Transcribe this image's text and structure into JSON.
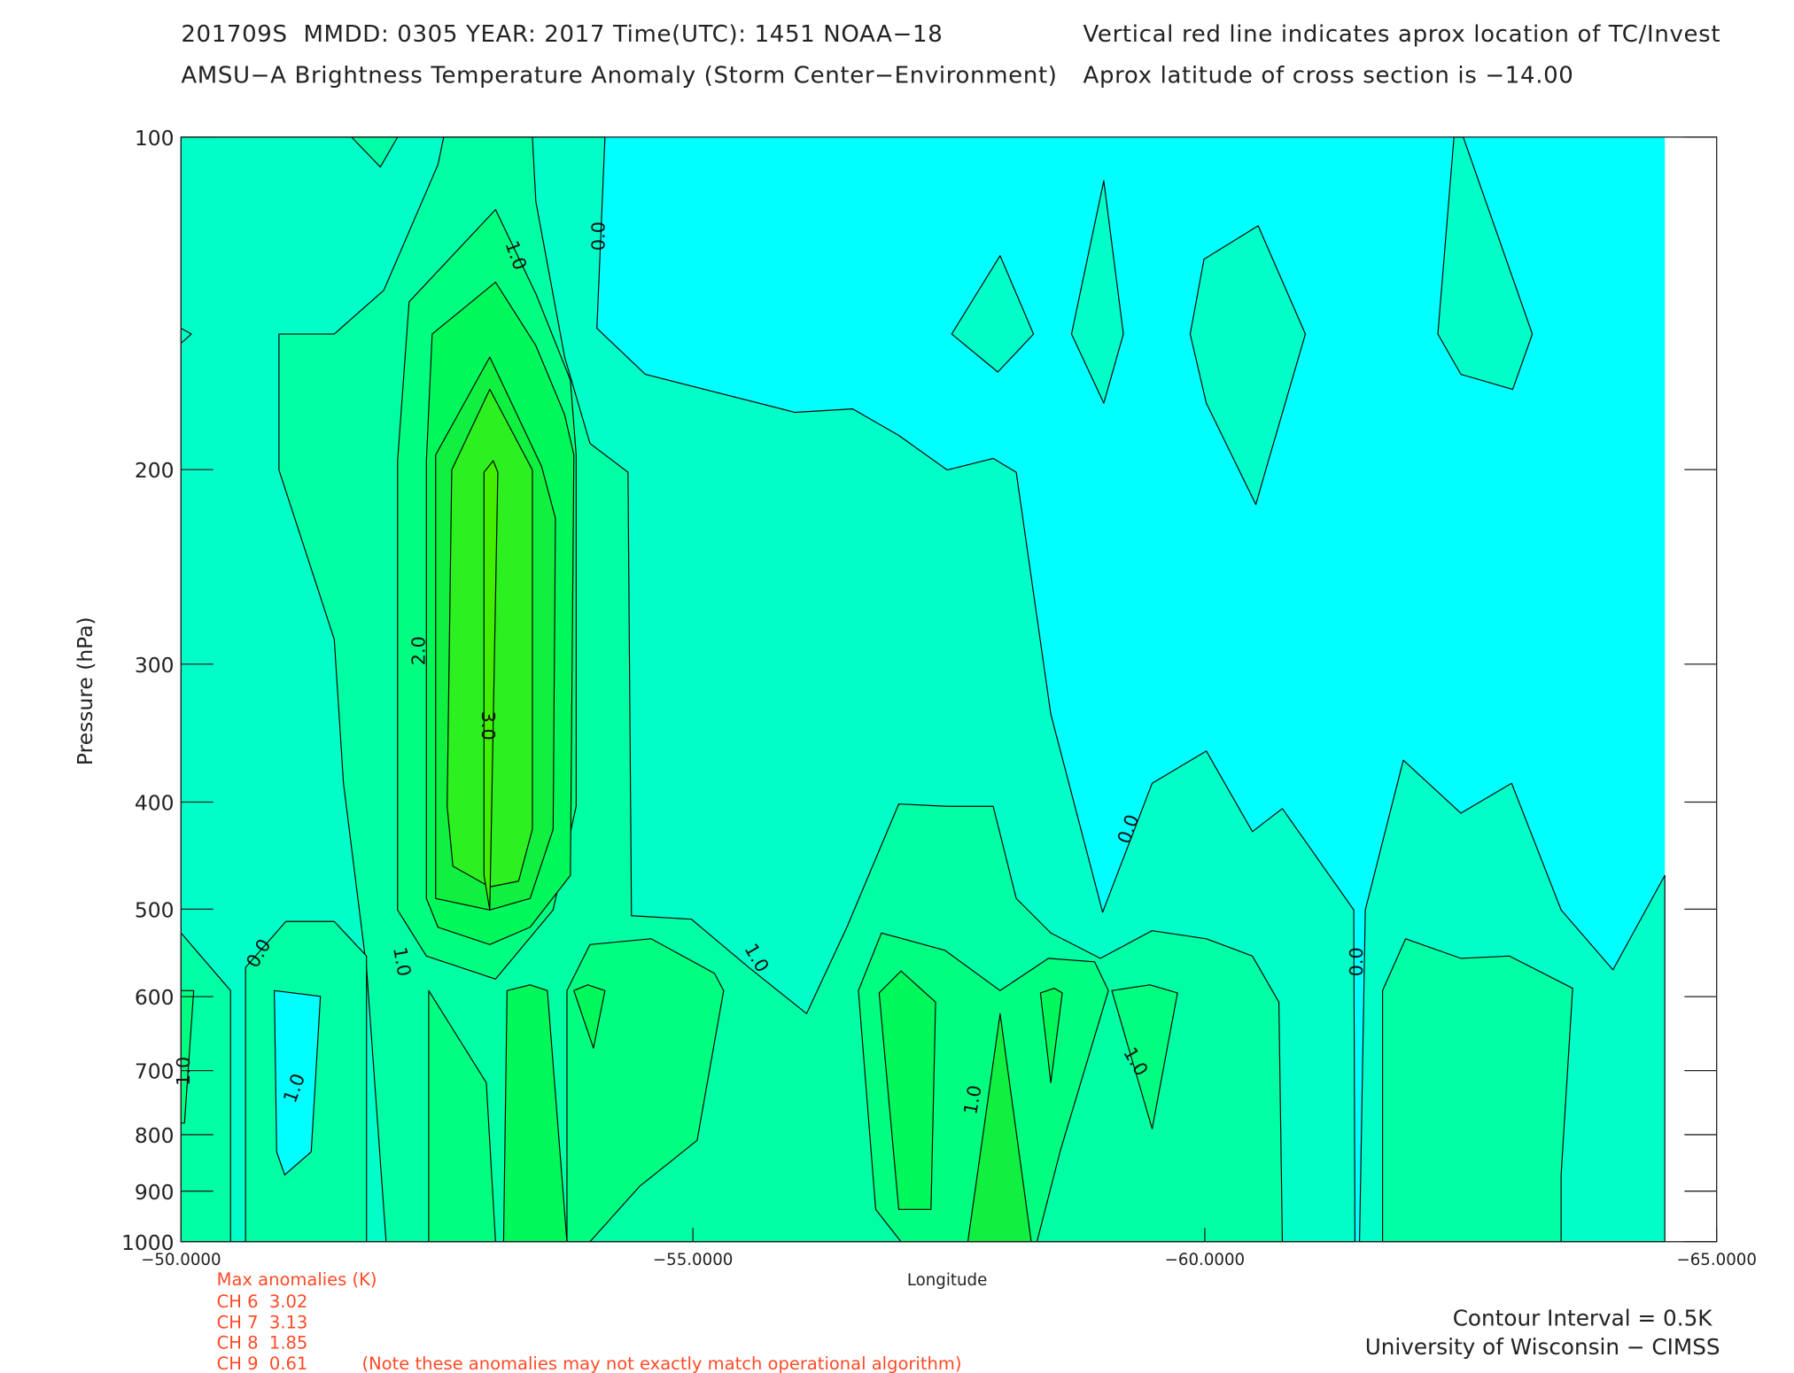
{
  "header": {
    "left": [
      "201709S  MMDD: 0305 YEAR: 2017 Time(UTC): 1451 NOAA−18",
      "AMSU−A Brightness Temperature Anomaly (Storm Center−Environment)"
    ],
    "right": [
      "Vertical red line indicates aprox location of TC/Invest",
      "Aprox latitude of cross section is −14.00"
    ]
  },
  "chart_data": {
    "type": "contour",
    "xlabel": "Longitude",
    "ylabel": "Pressure (hPa)",
    "xlim": [
      -50,
      -65
    ],
    "xticks": [
      {
        "value": -50,
        "label": "−50.0000"
      },
      {
        "value": -55,
        "label": "−55.0000"
      },
      {
        "value": -60,
        "label": "−60.0000"
      },
      {
        "value": -65,
        "label": "−65.0000"
      }
    ],
    "ylim": [
      100,
      1000
    ],
    "yticks": [
      100,
      200,
      300,
      400,
      500,
      600,
      700,
      800,
      900,
      1000
    ],
    "ylog": true,
    "y_inverted": true,
    "levels": [
      0,
      0.5,
      1.0,
      1.5,
      2.0,
      2.5,
      3.0
    ],
    "colors": [
      "#00ffff",
      "#00ffc8",
      "#00ffa4",
      "#00ff80",
      "#00f85a",
      "#10f040",
      "#2cf020",
      "#40f000"
    ],
    "line_color": "#000000",
    "contour_labels": [
      {
        "value": 0,
        "label": "0.0"
      },
      {
        "value": 1,
        "label": "1.0"
      },
      {
        "value": 2,
        "label": "2.0"
      },
      {
        "value": 3,
        "label": "3.0"
      }
    ]
  },
  "footer": {
    "anomalies_title": "Max anomalies (K)",
    "anomalies": [
      "CH 6  3.02",
      "CH 7  3.13",
      "CH 8  1.85",
      "CH 9  0.61"
    ],
    "note": "(Note these anomalies may not exactly match operational algorithm)",
    "contour_interval": "Contour Interval = 0.5K",
    "credit": "University of Wisconsin − CIMSS"
  }
}
